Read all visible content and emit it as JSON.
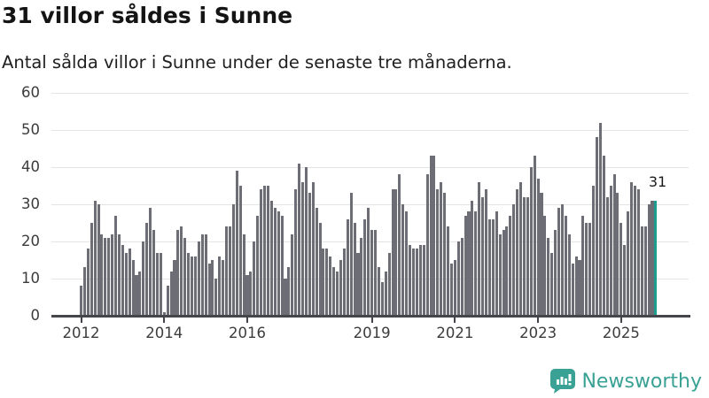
{
  "header": {
    "title": "31 villor såldes i Sunne",
    "subtitle": "Antal sålda villor i Sunne under de senaste tre månaderna."
  },
  "chart_data": {
    "type": "bar",
    "title": "31 villor såldes i Sunne",
    "subtitle": "Antal sålda villor i Sunne under de senaste tre månaderna.",
    "xlabel": "",
    "ylabel": "",
    "ylim": [
      0,
      60
    ],
    "grid": true,
    "y_ticks": [
      0,
      10,
      20,
      30,
      40,
      50,
      60
    ],
    "x_ticks": [
      {
        "label": "2012",
        "month": 0
      },
      {
        "label": "2014",
        "month": 24
      },
      {
        "label": "2016",
        "month": 48
      },
      {
        "label": "2019",
        "month": 84
      },
      {
        "label": "2021",
        "month": 108
      },
      {
        "label": "2023",
        "month": 132
      },
      {
        "label": "2025",
        "month": 156
      }
    ],
    "start_month": "2012-01",
    "values": [
      8,
      13,
      18,
      25,
      31,
      30,
      22,
      21,
      21,
      22,
      27,
      22,
      19,
      17,
      18,
      15,
      11,
      12,
      20,
      25,
      29,
      23,
      17,
      17,
      1,
      8,
      12,
      15,
      23,
      24,
      21,
      17,
      16,
      16,
      20,
      22,
      22,
      14,
      15,
      10,
      16,
      15,
      24,
      24,
      30,
      39,
      35,
      22,
      11,
      12,
      20,
      27,
      34,
      35,
      35,
      31,
      29,
      28,
      27,
      10,
      13,
      22,
      34,
      41,
      36,
      40,
      33,
      36,
      29,
      25,
      18,
      18,
      16,
      13,
      12,
      15,
      18,
      26,
      33,
      25,
      17,
      21,
      26,
      29,
      23,
      23,
      13,
      9,
      12,
      17,
      34,
      34,
      38,
      30,
      28,
      19,
      18,
      18,
      19,
      19,
      38,
      43,
      43,
      34,
      36,
      33,
      24,
      14,
      15,
      20,
      21,
      27,
      28,
      31,
      28,
      36,
      32,
      34,
      26,
      26,
      28,
      22,
      23,
      24,
      27,
      30,
      34,
      36,
      32,
      32,
      40,
      43,
      37,
      33,
      27,
      21,
      17,
      23,
      29,
      30,
      27,
      22,
      14,
      16,
      15,
      27,
      25,
      25,
      35,
      48,
      52,
      43,
      32,
      35,
      38,
      33,
      25,
      19,
      28,
      36,
      35,
      34,
      24,
      24,
      30,
      31,
      31
    ],
    "highlight_last": true,
    "last_value_label": "31",
    "bar_color": "#6d6d75",
    "highlight_color": "#1b9e8f",
    "legend": null
  },
  "footer": {
    "brand": "Newsworthy",
    "brand_color": "#3aa195"
  }
}
